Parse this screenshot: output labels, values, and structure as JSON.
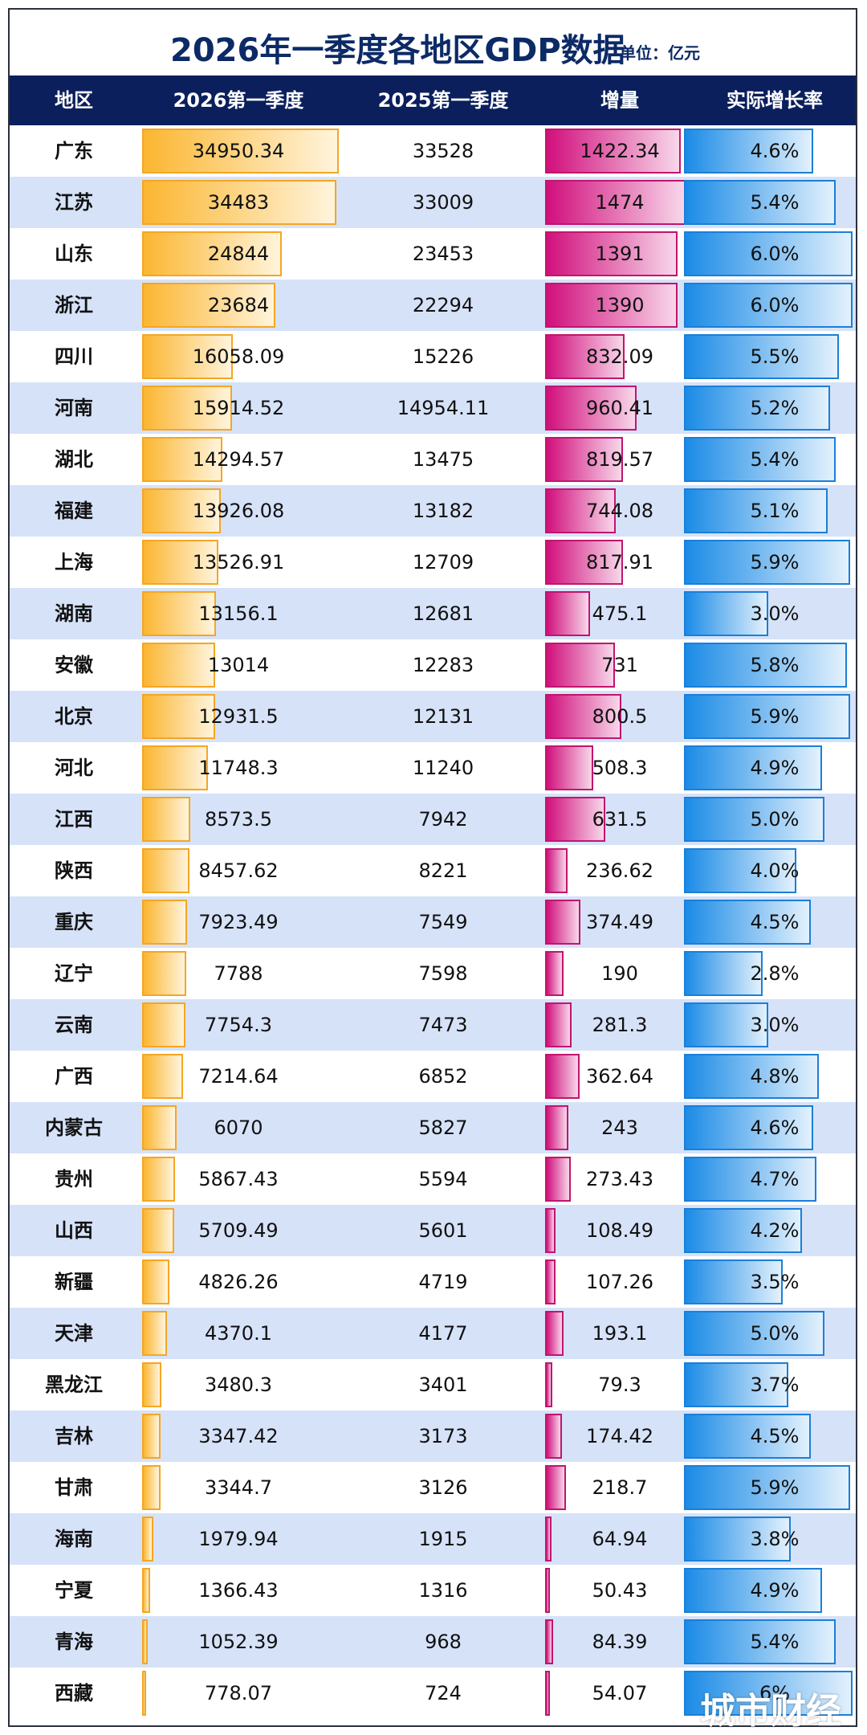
{
  "title": "2026年一季度各地区GDP数据",
  "unit": "单位：亿元",
  "watermark": "城市财经",
  "colors": {
    "header_bg": "#0a1f5c",
    "title": "#0c2a66",
    "gdp_bar": "#fbb631",
    "increase_bar": "#d10f7c",
    "rate_bar": "#1b8be6",
    "alt_row": "#d6e2f8"
  },
  "headers": [
    "地区",
    "2026第一季度",
    "2025第一季度",
    "增量",
    "实际增长率"
  ],
  "chart_data": {
    "type": "table",
    "title": "2026年一季度各地区GDP数据",
    "unit": "单位：亿元",
    "columns": [
      "地区",
      "2026第一季度",
      "2025第一季度",
      "增量",
      "实际增长率"
    ],
    "rows": [
      {
        "region": "广东",
        "gdp2026": "34950.34",
        "gdp2025": "33528",
        "increase": "1422.34",
        "rate": "4.6%"
      },
      {
        "region": "江苏",
        "gdp2026": "34483",
        "gdp2025": "33009",
        "increase": "1474",
        "rate": "5.4%"
      },
      {
        "region": "山东",
        "gdp2026": "24844",
        "gdp2025": "23453",
        "increase": "1391",
        "rate": "6.0%"
      },
      {
        "region": "浙江",
        "gdp2026": "23684",
        "gdp2025": "22294",
        "increase": "1390",
        "rate": "6.0%"
      },
      {
        "region": "四川",
        "gdp2026": "16058.09",
        "gdp2025": "15226",
        "increase": "832.09",
        "rate": "5.5%"
      },
      {
        "region": "河南",
        "gdp2026": "15914.52",
        "gdp2025": "14954.11",
        "increase": "960.41",
        "rate": "5.2%"
      },
      {
        "region": "湖北",
        "gdp2026": "14294.57",
        "gdp2025": "13475",
        "increase": "819.57",
        "rate": "5.4%"
      },
      {
        "region": "福建",
        "gdp2026": "13926.08",
        "gdp2025": "13182",
        "increase": "744.08",
        "rate": "5.1%"
      },
      {
        "region": "上海",
        "gdp2026": "13526.91",
        "gdp2025": "12709",
        "increase": "817.91",
        "rate": "5.9%"
      },
      {
        "region": "湖南",
        "gdp2026": "13156.1",
        "gdp2025": "12681",
        "increase": "475.1",
        "rate": "3.0%"
      },
      {
        "region": "安徽",
        "gdp2026": "13014",
        "gdp2025": "12283",
        "increase": "731",
        "rate": "5.8%"
      },
      {
        "region": "北京",
        "gdp2026": "12931.5",
        "gdp2025": "12131",
        "increase": "800.5",
        "rate": "5.9%"
      },
      {
        "region": "河北",
        "gdp2026": "11748.3",
        "gdp2025": "11240",
        "increase": "508.3",
        "rate": "4.9%"
      },
      {
        "region": "江西",
        "gdp2026": "8573.5",
        "gdp2025": "7942",
        "increase": "631.5",
        "rate": "5.0%"
      },
      {
        "region": "陕西",
        "gdp2026": "8457.62",
        "gdp2025": "8221",
        "increase": "236.62",
        "rate": "4.0%"
      },
      {
        "region": "重庆",
        "gdp2026": "7923.49",
        "gdp2025": "7549",
        "increase": "374.49",
        "rate": "4.5%"
      },
      {
        "region": "辽宁",
        "gdp2026": "7788",
        "gdp2025": "7598",
        "increase": "190",
        "rate": "2.8%"
      },
      {
        "region": "云南",
        "gdp2026": "7754.3",
        "gdp2025": "7473",
        "increase": "281.3",
        "rate": "3.0%"
      },
      {
        "region": "广西",
        "gdp2026": "7214.64",
        "gdp2025": "6852",
        "increase": "362.64",
        "rate": "4.8%"
      },
      {
        "region": "内蒙古",
        "gdp2026": "6070",
        "gdp2025": "5827",
        "increase": "243",
        "rate": "4.6%"
      },
      {
        "region": "贵州",
        "gdp2026": "5867.43",
        "gdp2025": "5594",
        "increase": "273.43",
        "rate": "4.7%"
      },
      {
        "region": "山西",
        "gdp2026": "5709.49",
        "gdp2025": "5601",
        "increase": "108.49",
        "rate": "4.2%"
      },
      {
        "region": "新疆",
        "gdp2026": "4826.26",
        "gdp2025": "4719",
        "increase": "107.26",
        "rate": "3.5%"
      },
      {
        "region": "天津",
        "gdp2026": "4370.1",
        "gdp2025": "4177",
        "increase": "193.1",
        "rate": "5.0%"
      },
      {
        "region": "黑龙江",
        "gdp2026": "3480.3",
        "gdp2025": "3401",
        "increase": "79.3",
        "rate": "3.7%"
      },
      {
        "region": "吉林",
        "gdp2026": "3347.42",
        "gdp2025": "3173",
        "increase": "174.42",
        "rate": "4.5%"
      },
      {
        "region": "甘肃",
        "gdp2026": "3344.7",
        "gdp2025": "3126",
        "increase": "218.7",
        "rate": "5.9%"
      },
      {
        "region": "海南",
        "gdp2026": "1979.94",
        "gdp2025": "1915",
        "increase": "64.94",
        "rate": "3.8%"
      },
      {
        "region": "宁夏",
        "gdp2026": "1366.43",
        "gdp2025": "1316",
        "increase": "50.43",
        "rate": "4.9%"
      },
      {
        "region": "青海",
        "gdp2026": "1052.39",
        "gdp2025": "968",
        "increase": "84.39",
        "rate": "5.4%"
      },
      {
        "region": "西藏",
        "gdp2026": "778.07",
        "gdp2025": "724",
        "increase": "54.07",
        "rate": "6%"
      }
    ]
  }
}
